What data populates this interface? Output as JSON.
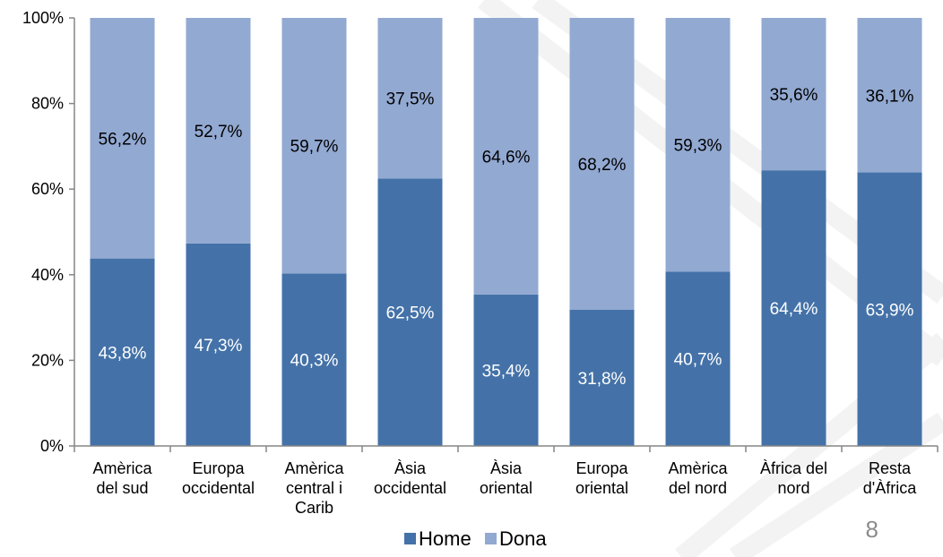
{
  "chart_data": {
    "type": "bar",
    "stacked": true,
    "percent": true,
    "categories": [
      "Amèrica del sud",
      "Europa occidental",
      "Amèrica central i Carib",
      "Àsia occidental",
      "Àsia oriental",
      "Europa oriental",
      "Amèrica del nord",
      "Àfrica del nord",
      "Resta d'Àfrica"
    ],
    "category_lines": [
      [
        "Amèrica",
        "del sud"
      ],
      [
        "Europa",
        "occidental"
      ],
      [
        "Amèrica",
        "central i",
        "Carib"
      ],
      [
        "Àsia",
        "occidental"
      ],
      [
        "Àsia",
        "oriental"
      ],
      [
        "Europa",
        "oriental"
      ],
      [
        "Amèrica",
        "del nord"
      ],
      [
        "Àfrica del",
        "nord"
      ],
      [
        "Resta",
        "d'Àfrica"
      ]
    ],
    "series": [
      {
        "name": "Home",
        "color": "#4472a8",
        "values": [
          43.8,
          47.3,
          40.3,
          62.5,
          35.4,
          31.8,
          40.7,
          64.4,
          63.9
        ],
        "labels": [
          "43,8%",
          "47,3%",
          "40,3%",
          "62,5%",
          "35,4%",
          "31,8%",
          "40,7%",
          "64,4%",
          "63,9%"
        ]
      },
      {
        "name": "Dona",
        "color": "#92a9d2",
        "values": [
          56.2,
          52.7,
          59.7,
          37.5,
          64.6,
          68.2,
          59.3,
          35.6,
          36.1
        ],
        "labels": [
          "56,2%",
          "52,7%",
          "59,7%",
          "37,5%",
          "64,6%",
          "68,2%",
          "59,3%",
          "35,6%",
          "36,1%"
        ]
      }
    ],
    "y_ticks": [
      "0%",
      "20%",
      "40%",
      "60%",
      "80%",
      "100%"
    ],
    "ylim": [
      0,
      100
    ],
    "grid": false,
    "legend_position": "bottom"
  },
  "page_number": "8"
}
